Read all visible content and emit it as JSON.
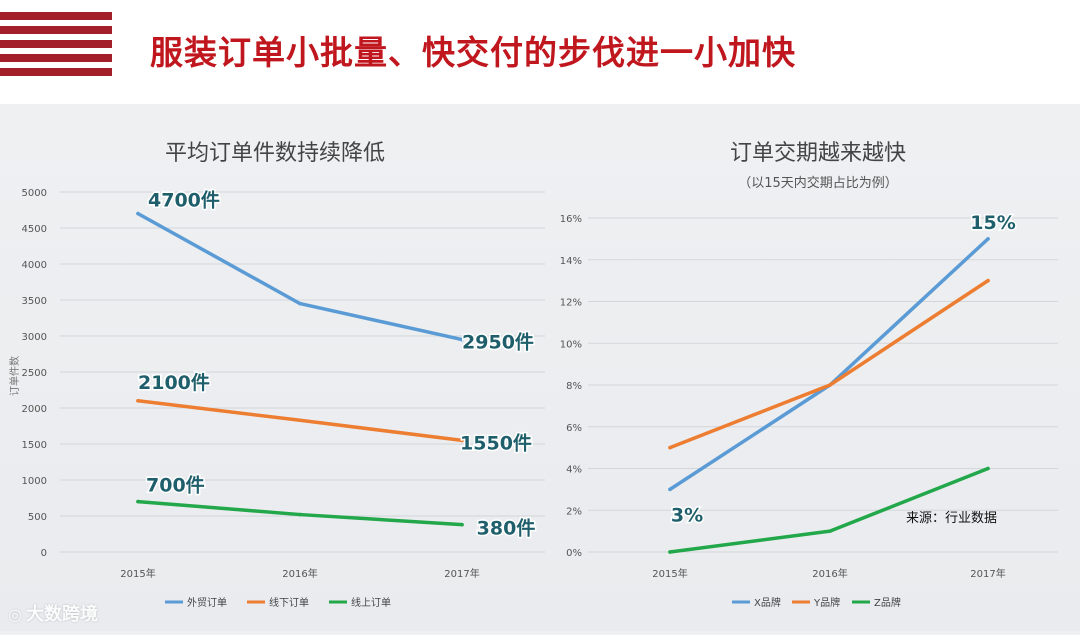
{
  "header": {
    "title": "服装订单小批量、快交付的步伐进一小加快"
  },
  "source_note": "来源：行业数据",
  "watermark": "大数跨境",
  "colors": {
    "accent": "#c0171f",
    "stripe": "#a31f2a",
    "blue": "#5b9bd5",
    "orange": "#ed7d31",
    "green": "#22a84a",
    "label_teal": "#1f5f6b"
  },
  "chart_data": [
    {
      "type": "line",
      "title": "平均订单件数持续降低",
      "xlabel": "",
      "ylabel": "订单件数",
      "categories": [
        "2015年",
        "2016年",
        "2017年"
      ],
      "ylim": [
        0,
        5000
      ],
      "yticks": [
        "0",
        "500",
        "1000",
        "1500",
        "2000",
        "2500",
        "3000",
        "3500",
        "4000",
        "4500",
        "5000"
      ],
      "grid": true,
      "legend": "bottom",
      "series": [
        {
          "name": "外贸订单",
          "color": "#5b9bd5",
          "values": [
            4700,
            3450,
            2950
          ]
        },
        {
          "name": "线下订单",
          "color": "#ed7d31",
          "values": [
            2100,
            1830,
            1550
          ]
        },
        {
          "name": "线上订单",
          "color": "#22a84a",
          "values": [
            700,
            520,
            380
          ]
        }
      ],
      "annotations": [
        {
          "series": 0,
          "point": 0,
          "text": "4700件"
        },
        {
          "series": 0,
          "point": 2,
          "text": "2950件"
        },
        {
          "series": 1,
          "point": 0,
          "text": "2100件"
        },
        {
          "series": 1,
          "point": 2,
          "text": "1550件"
        },
        {
          "series": 2,
          "point": 0,
          "text": "700件"
        },
        {
          "series": 2,
          "point": 2,
          "text": "380件"
        }
      ]
    },
    {
      "type": "line",
      "title": "订单交期越来越快",
      "subtitle": "（以15天内交期占比为例）",
      "xlabel": "",
      "ylabel": "",
      "categories": [
        "2015年",
        "2016年",
        "2017年"
      ],
      "ylim": [
        0,
        16
      ],
      "yticks": [
        "0%",
        "2%",
        "4%",
        "6%",
        "8%",
        "10%",
        "12%",
        "14%",
        "16%"
      ],
      "grid": true,
      "legend": "bottom",
      "series": [
        {
          "name": "X品牌",
          "color": "#5b9bd5",
          "values": [
            3,
            8,
            15
          ]
        },
        {
          "name": "Y品牌",
          "color": "#ed7d31",
          "values": [
            5,
            8,
            13
          ]
        },
        {
          "name": "Z品牌",
          "color": "#22a84a",
          "values": [
            0,
            1,
            4
          ]
        }
      ],
      "annotations": [
        {
          "series": 0,
          "point": 0,
          "text": "3%"
        },
        {
          "series": 0,
          "point": 2,
          "text": "15%"
        }
      ]
    }
  ]
}
